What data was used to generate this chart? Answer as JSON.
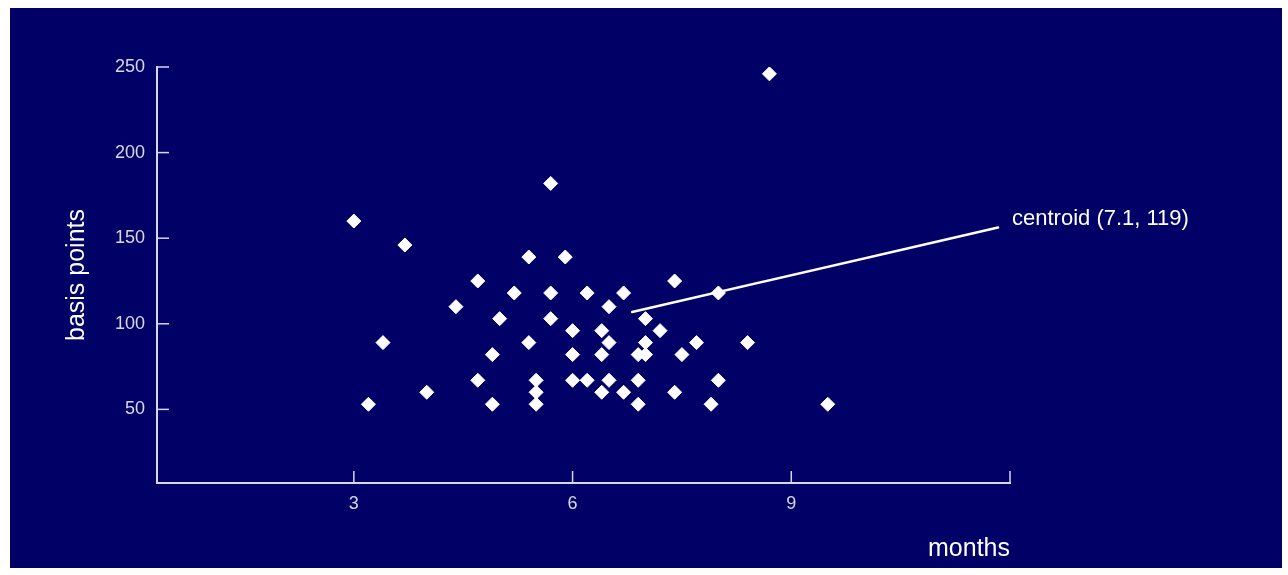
{
  "chart_data": {
    "type": "scatter",
    "xlabel": "months",
    "ylabel": "basis points",
    "marker": "diamond",
    "xlim": [
      0.3,
      12
    ],
    "ylim": [
      7,
      250
    ],
    "xticks": [
      3,
      6,
      9
    ],
    "yticks": [
      50,
      100,
      150,
      200,
      250
    ],
    "series": [
      {
        "color": "#ffffff",
        "x": [
          3.0,
          3.7,
          3.4,
          3.2,
          4.0,
          5.7,
          5.4,
          5.9,
          4.7,
          7.4,
          5.2,
          5.7,
          6.2,
          6.7,
          8.0,
          4.4,
          6.5,
          5.0,
          5.7,
          7.0,
          6.0,
          6.4,
          7.2,
          5.4,
          6.5,
          7.0,
          7.7,
          8.4,
          4.9,
          6.0,
          6.4,
          6.9,
          7.0,
          7.5,
          4.7,
          5.5,
          6.0,
          6.2,
          6.5,
          6.9,
          8.0,
          5.5,
          6.4,
          6.7,
          7.4,
          4.9,
          5.5,
          6.9,
          7.9,
          9.5,
          8.7
        ],
        "values": [
          160,
          146,
          89,
          53,
          60,
          182,
          139,
          139,
          125,
          125,
          118,
          118,
          118,
          118,
          118,
          110,
          110,
          103,
          103,
          103,
          96,
          96,
          96,
          89,
          89,
          89,
          89,
          89,
          82,
          82,
          82,
          82,
          82,
          82,
          67,
          67,
          67,
          67,
          67,
          67,
          67,
          60,
          60,
          60,
          60,
          53,
          53,
          53,
          53,
          53,
          246
        ]
      }
    ],
    "annotations": [
      "centroid (7.1, 119)"
    ]
  }
}
